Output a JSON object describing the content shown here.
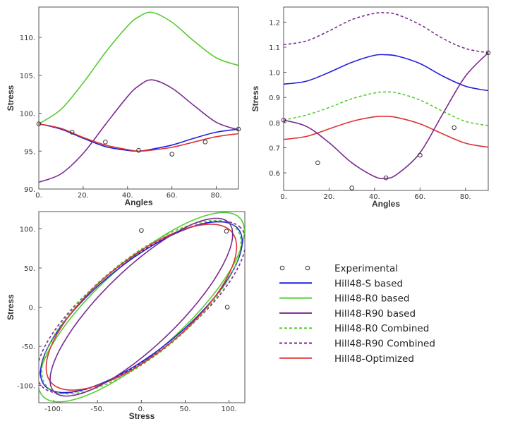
{
  "series_styles": [
    {
      "key": "hill48_s",
      "color": "#2020dd",
      "dash": false
    },
    {
      "key": "hill48_r0",
      "color": "#55cc33",
      "dash": false
    },
    {
      "key": "hill48_r90",
      "color": "#7a2a8f",
      "dash": false
    },
    {
      "key": "hill48_r0_combined",
      "color": "#55cc33",
      "dash": true
    },
    {
      "key": "hill48_r90_combined",
      "color": "#7a2a8f",
      "dash": true
    },
    {
      "key": "hill48_optimized",
      "color": "#dd3333",
      "dash": false
    }
  ],
  "legend": {
    "items": [
      {
        "label": "Experimental",
        "marker": "points"
      },
      {
        "label": "Hill48-S based",
        "series": "hill48_s"
      },
      {
        "label": "Hill48-R0 based",
        "series": "hill48_r0"
      },
      {
        "label": "Hill48-R90 based",
        "series": "hill48_r90"
      },
      {
        "label": "Hill48-R0 Combined",
        "series": "hill48_r0_combined"
      },
      {
        "label": "Hill48-R90 Combined",
        "series": "hill48_r90_combined"
      },
      {
        "label": "Hill48-Optimized",
        "series": "hill48_optimized"
      }
    ]
  },
  "chart_data": [
    {
      "type": "line",
      "xlabel": "Angles",
      "ylabel": "Stress",
      "xlim": [
        0,
        90
      ],
      "ylim": [
        90,
        114
      ],
      "xticks": [
        0,
        20,
        40,
        60,
        80
      ],
      "xtick_labels": [
        "0.",
        "20.",
        "40.",
        "60.",
        "80."
      ],
      "yticks": [
        90,
        95,
        100,
        105,
        110
      ],
      "ytick_labels": [
        "90.",
        "95.",
        "100.",
        "105.",
        "110."
      ],
      "series": [
        {
          "key": "hill48_s",
          "points": [
            [
              0,
              98.6
            ],
            [
              10,
              97.9
            ],
            [
              20,
              96.7
            ],
            [
              30,
              95.6
            ],
            [
              40,
              95.1
            ],
            [
              45,
              95.0
            ],
            [
              50,
              95.2
            ],
            [
              60,
              95.8
            ],
            [
              70,
              96.7
            ],
            [
              80,
              97.5
            ],
            [
              90,
              97.9
            ]
          ]
        },
        {
          "key": "hill48_r0",
          "points": [
            [
              0,
              98.6
            ],
            [
              10,
              100.5
            ],
            [
              20,
              104.0
            ],
            [
              30,
              108.0
            ],
            [
              40,
              111.5
            ],
            [
              45,
              112.7
            ],
            [
              51,
              113.3
            ],
            [
              60,
              112.0
            ],
            [
              70,
              109.5
            ],
            [
              80,
              107.3
            ],
            [
              90,
              106.3
            ]
          ]
        },
        {
          "key": "hill48_r90",
          "points": [
            [
              0,
              90.9
            ],
            [
              10,
              92.0
            ],
            [
              20,
              94.7
            ],
            [
              30,
              98.5
            ],
            [
              40,
              102.2
            ],
            [
              45,
              103.6
            ],
            [
              51,
              104.4
            ],
            [
              60,
              103.3
            ],
            [
              70,
              101.0
            ],
            [
              80,
              98.8
            ],
            [
              90,
              97.8
            ]
          ]
        },
        {
          "key": "hill48_optimized",
          "points": [
            [
              0,
              98.6
            ],
            [
              10,
              98.0
            ],
            [
              20,
              96.8
            ],
            [
              30,
              95.8
            ],
            [
              40,
              95.2
            ],
            [
              45,
              95.0
            ],
            [
              50,
              95.1
            ],
            [
              60,
              95.5
            ],
            [
              70,
              96.2
            ],
            [
              80,
              96.9
            ],
            [
              90,
              97.3
            ]
          ]
        }
      ],
      "experimental": [
        [
          0,
          98.6
        ],
        [
          15,
          97.5
        ],
        [
          30,
          96.2
        ],
        [
          45,
          95.1
        ],
        [
          60,
          94.6
        ],
        [
          75,
          96.2
        ],
        [
          90,
          97.9
        ]
      ]
    },
    {
      "type": "line",
      "xlabel": "Angles",
      "ylabel": "Stress",
      "xlim": [
        0,
        90
      ],
      "ylim": [
        0.53,
        1.26
      ],
      "xticks": [
        0,
        20,
        40,
        60,
        80
      ],
      "xtick_labels": [
        "0.",
        "20.",
        "40.",
        "60.",
        "80."
      ],
      "yticks": [
        0.6,
        0.7,
        0.8,
        0.9,
        1.0,
        1.1,
        1.2
      ],
      "ytick_labels": [
        "0.6",
        "0.7",
        "0.8",
        "0.9",
        "1.0",
        "1.1",
        "1.2"
      ],
      "series": [
        {
          "key": "hill48_r90_combined",
          "points": [
            [
              0,
              1.11
            ],
            [
              10,
              1.125
            ],
            [
              20,
              1.165
            ],
            [
              30,
              1.21
            ],
            [
              40,
              1.235
            ],
            [
              45,
              1.237
            ],
            [
              50,
              1.23
            ],
            [
              60,
              1.19
            ],
            [
              70,
              1.135
            ],
            [
              80,
              1.095
            ],
            [
              90,
              1.078
            ]
          ]
        },
        {
          "key": "hill48_s",
          "points": [
            [
              0,
              0.953
            ],
            [
              10,
              0.965
            ],
            [
              20,
              1.0
            ],
            [
              30,
              1.04
            ],
            [
              40,
              1.068
            ],
            [
              45,
              1.07
            ],
            [
              50,
              1.065
            ],
            [
              60,
              1.035
            ],
            [
              70,
              0.985
            ],
            [
              80,
              0.945
            ],
            [
              90,
              0.927
            ]
          ]
        },
        {
          "key": "hill48_r0_combined",
          "points": [
            [
              0,
              0.81
            ],
            [
              10,
              0.83
            ],
            [
              20,
              0.86
            ],
            [
              30,
              0.895
            ],
            [
              40,
              0.918
            ],
            [
              45,
              0.922
            ],
            [
              50,
              0.918
            ],
            [
              60,
              0.89
            ],
            [
              70,
              0.845
            ],
            [
              80,
              0.805
            ],
            [
              90,
              0.788
            ]
          ]
        },
        {
          "key": "hill48_optimized",
          "points": [
            [
              0,
              0.733
            ],
            [
              10,
              0.745
            ],
            [
              20,
              0.775
            ],
            [
              30,
              0.805
            ],
            [
              40,
              0.823
            ],
            [
              45,
              0.825
            ],
            [
              50,
              0.82
            ],
            [
              60,
              0.795
            ],
            [
              70,
              0.755
            ],
            [
              80,
              0.718
            ],
            [
              90,
              0.702
            ]
          ]
        },
        {
          "key": "hill48_r90",
          "points": [
            [
              0,
              0.81
            ],
            [
              10,
              0.785
            ],
            [
              20,
              0.72
            ],
            [
              30,
              0.64
            ],
            [
              40,
              0.585
            ],
            [
              45,
              0.578
            ],
            [
              50,
              0.595
            ],
            [
              60,
              0.68
            ],
            [
              70,
              0.835
            ],
            [
              80,
              0.985
            ],
            [
              90,
              1.078
            ]
          ]
        }
      ],
      "experimental": [
        [
          0,
          0.81
        ],
        [
          15,
          0.64
        ],
        [
          30,
          0.54
        ],
        [
          45,
          0.58
        ],
        [
          60,
          0.67
        ],
        [
          75,
          0.78
        ],
        [
          90,
          1.078
        ]
      ]
    },
    {
      "type": "line",
      "xlabel": "Stress",
      "ylabel": "Stress",
      "xlim": [
        -117,
        118
      ],
      "ylim": [
        -122,
        122
      ],
      "xticks": [
        -100,
        -50,
        0,
        50,
        100
      ],
      "xtick_labels": [
        "-100.",
        "-50.",
        "0.",
        "50.",
        "100."
      ],
      "yticks": [
        -100,
        -50,
        0,
        50,
        100
      ],
      "ytick_labels": [
        "-100.",
        "-50.",
        "0.",
        "50.",
        "100."
      ],
      "series": [
        {
          "key": "hill48_r0",
          "ellipse": {
            "cx": 0,
            "cy": 0,
            "a": 160,
            "b": 53,
            "angle_deg": 46
          }
        },
        {
          "key": "hill48_r90_combined",
          "ellipse": {
            "cx": 0,
            "cy": 0,
            "a": 152,
            "b": 56,
            "angle_deg": 42
          }
        },
        {
          "key": "hill48_s",
          "ellipse": {
            "cx": 0,
            "cy": 0,
            "a": 149,
            "b": 54,
            "angle_deg": 43
          }
        },
        {
          "key": "hill48_r0_combined",
          "ellipse": {
            "cx": 0,
            "cy": 0,
            "a": 148,
            "b": 57,
            "angle_deg": 44
          }
        },
        {
          "key": "hill48_optimized",
          "ellipse": {
            "cx": 0,
            "cy": 0,
            "a": 141,
            "b": 56,
            "angle_deg": 44
          }
        },
        {
          "key": "hill48_r90",
          "ellipse": {
            "cx": 0,
            "cy": 0,
            "a": 147,
            "b": 46,
            "angle_deg": 48
          }
        }
      ],
      "experimental": [
        [
          0,
          98
        ],
        [
          97,
          97
        ],
        [
          98,
          0
        ]
      ]
    }
  ]
}
